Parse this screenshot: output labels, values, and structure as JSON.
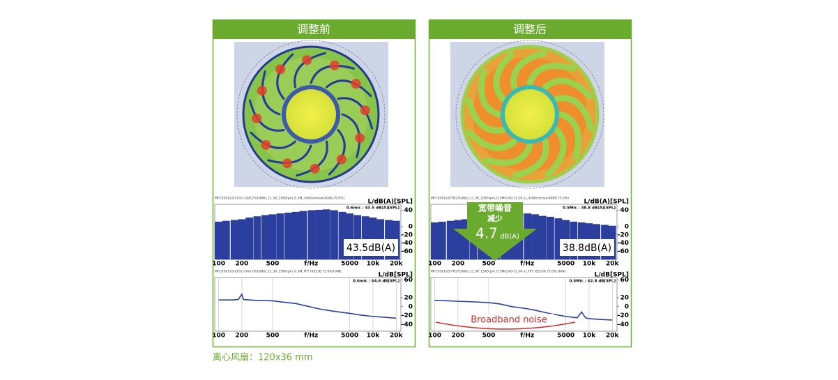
{
  "panels": [
    {
      "title": "调整前",
      "bars": {
        "header": "MFC0301V3-C01C-GA9_F03xB60_11.3V_1560rpm_0.3M_3x60cmmax(4096,75.0%)",
        "ylabel": "L/dB(A)[SPL]",
        "readout": "0.6mic : 43.5 dB(A)[SPL]",
        "total": "43.5dB(A)",
        "ylim": [
          -80,
          60
        ],
        "yticks": [
          40,
          0,
          -20,
          -40,
          -60
        ],
        "xlim": [
          89,
          23000
        ],
        "xticks": [
          100,
          200,
          500,
          5000,
          {
            "value": 10000,
            "label": "10k"
          },
          {
            "value": 20000,
            "label": "20k"
          }
        ],
        "xlabel": "f/Hz",
        "bands": [
          100,
          125,
          160,
          200,
          250,
          315,
          400,
          500,
          630,
          800,
          1000,
          1250,
          1600,
          2000,
          2500,
          3150,
          4000,
          5000,
          6300,
          8000,
          10000,
          12500,
          16000,
          20000
        ],
        "values": [
          12,
          14,
          16,
          18,
          22,
          25,
          28,
          30,
          32,
          34,
          36,
          38,
          40,
          41,
          42,
          40,
          36,
          32,
          28,
          25,
          22,
          18,
          16,
          14
        ]
      },
      "spectrum": {
        "header": "MFC0301V3-C01C-GA9_F03xB60_11.3V_1560rpm_0.3M_FFT (65536,75.0%,HAN)",
        "ylabel": "L/dB[SPL]",
        "readout": "0.6mic : 64.6 dB[SPL]",
        "ylim": [
          -55,
          70
        ],
        "yticks": [
          60,
          20,
          0,
          -20,
          -40
        ],
        "xlim": [
          89,
          23000
        ],
        "xticks": [
          100,
          200,
          500,
          5000,
          {
            "value": 10000,
            "label": "10k"
          },
          {
            "value": 20000,
            "label": "20k"
          }
        ],
        "xlabel": "f/Hz",
        "x": [
          100,
          150,
          180,
          200,
          210,
          300,
          500,
          700,
          1000,
          1500,
          2000,
          3000,
          5000,
          7000,
          10000,
          15000,
          20000
        ],
        "values": [
          15,
          15,
          16,
          28,
          16,
          14,
          13,
          10,
          7,
          0,
          -5,
          -10,
          -15,
          -19,
          -22,
          -24,
          -26
        ]
      }
    },
    {
      "title": "调整后",
      "bars": {
        "header": "MFC0301V3(TR17168A)_11.3V_1545rpm_0.3M(0.00-12.00 s)_3x60cmmax(4096,75.0%)",
        "ylabel": "L/dB(A)[SPL]",
        "readout": "0.5Mic : 38.8 dB(A)[SPL]",
        "total": "38.8dB(A)",
        "ylim": [
          -80,
          60
        ],
        "yticks": [
          40,
          0,
          -20,
          -40,
          -60
        ],
        "xlim": [
          89,
          23000
        ],
        "xticks": [
          100,
          200,
          500,
          5000,
          {
            "value": 10000,
            "label": "10k"
          },
          {
            "value": 20000,
            "label": "20k"
          }
        ],
        "xlabel": "f/Hz",
        "bands": [
          100,
          125,
          160,
          200,
          250,
          315,
          400,
          500,
          630,
          800,
          1000,
          1250,
          1600,
          2000,
          2500,
          3150,
          4000,
          5000,
          6300,
          8000,
          10000,
          12500,
          16000,
          20000
        ],
        "values": [
          10,
          12,
          14,
          16,
          18,
          20,
          22,
          24,
          26,
          28,
          30,
          32,
          32,
          30,
          26,
          24,
          20,
          16,
          12,
          10,
          8,
          6,
          4,
          2
        ]
      },
      "spectrum": {
        "header": "MFC0301V3(TR17168A)_11.3V_1545rpm_0.3M(0.00-12.00 s)_FFT (65536,75.0%,HAN)",
        "ylabel": "L/dB[SPL]",
        "readout": "0.5Mic : 62.8 dB[SPL]",
        "ylim": [
          -55,
          70
        ],
        "yticks": [
          60,
          20,
          0,
          -20,
          -40
        ],
        "xlim": [
          89,
          23000
        ],
        "xticks": [
          100,
          200,
          500,
          5000,
          {
            "value": 10000,
            "label": "10k"
          },
          {
            "value": 20000,
            "label": "20k"
          }
        ],
        "xlabel": "f/Hz",
        "x": [
          100,
          150,
          200,
          300,
          500,
          700,
          1000,
          1500,
          2000,
          3000,
          5000,
          7000,
          8000,
          9000,
          10000,
          15000,
          20000
        ],
        "values": [
          14,
          13,
          12,
          11,
          9,
          6,
          0,
          -4,
          -8,
          -15,
          -22,
          -25,
          -12,
          -25,
          -27,
          -29,
          -30
        ]
      }
    }
  ],
  "annotation": {
    "line1": "宽带噪音",
    "line2": "减少",
    "value": "4.7",
    "unit": "dB(A)"
  },
  "broadband_label": "Broadband noise",
  "caption": "离心风扇：120x36 mm"
}
